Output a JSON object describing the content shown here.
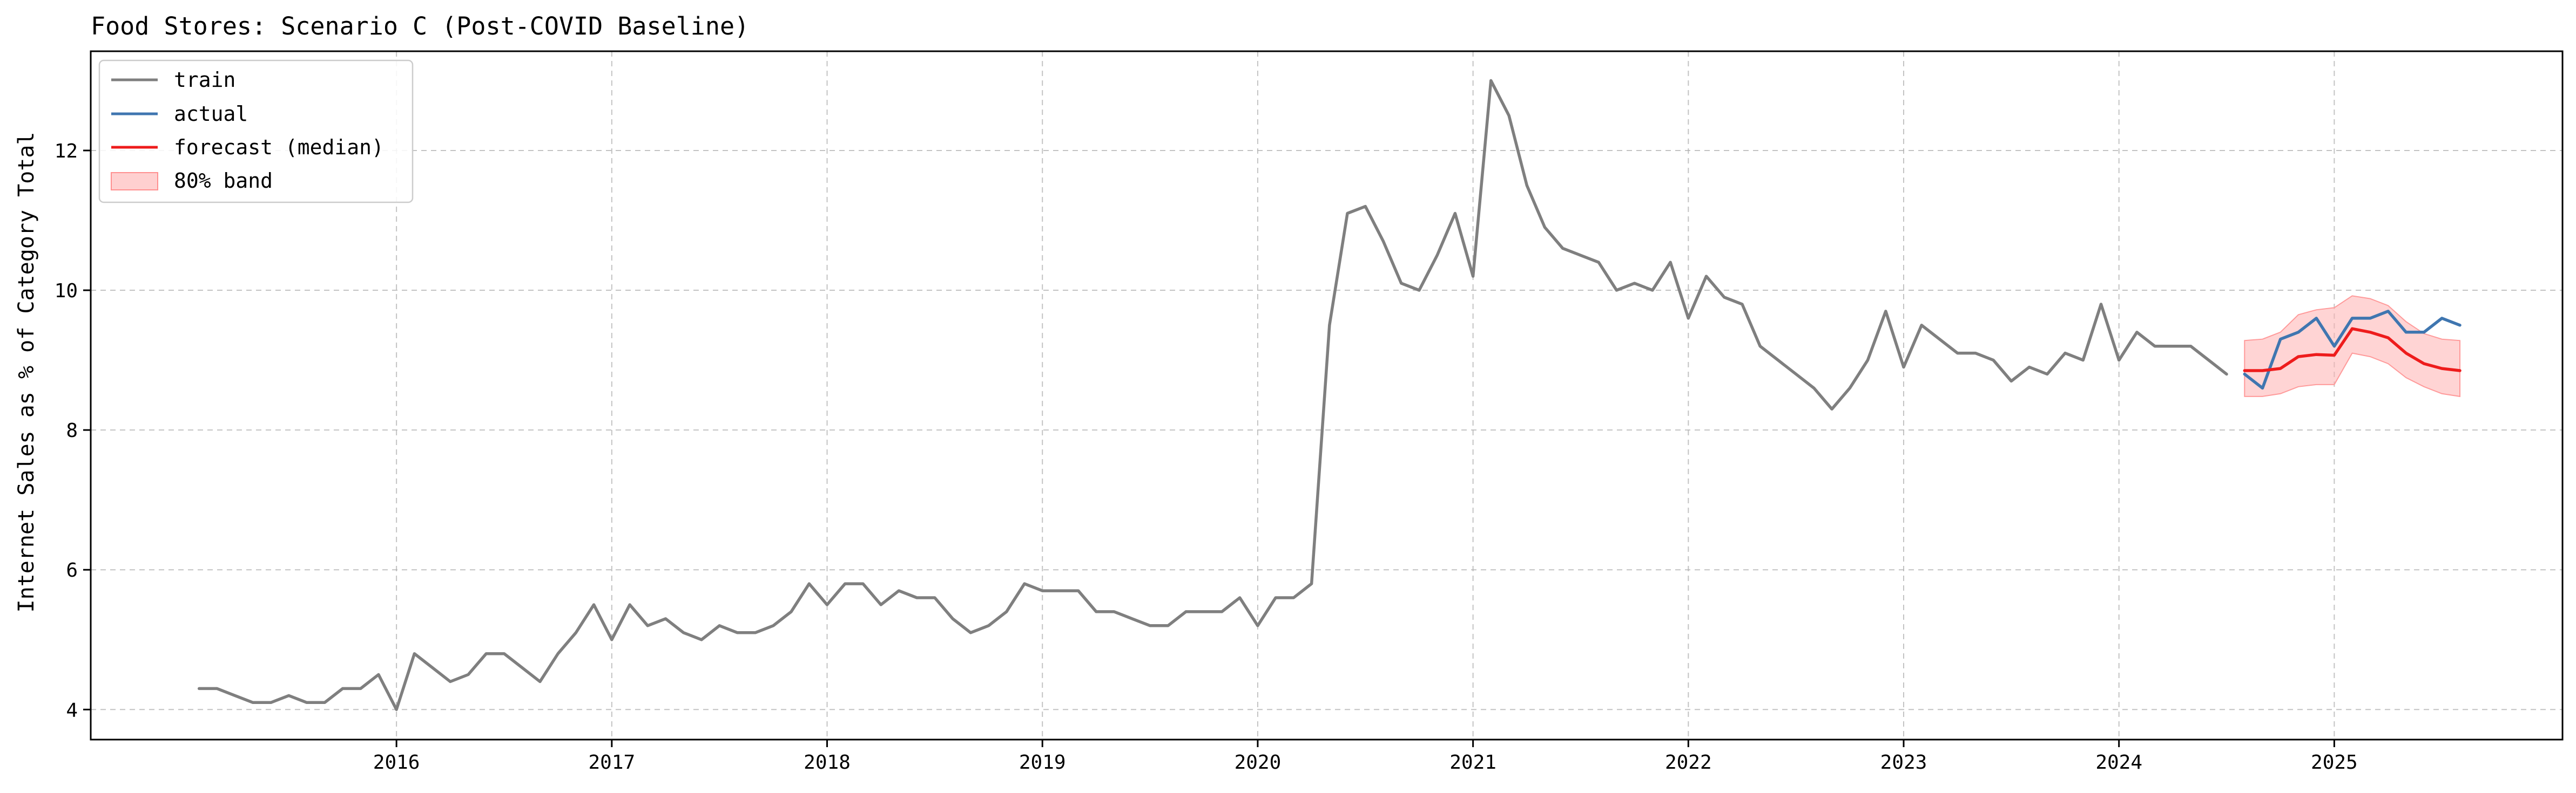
{
  "chart_data": {
    "type": "line",
    "title": "Food Stores: Scenario C (Post-COVID Baseline)",
    "xlabel": "",
    "ylabel": "Internet Sales as % of Category Total",
    "xlim": [
      2014.58,
      2026.06
    ],
    "ylim": [
      3.57,
      13.42
    ],
    "x_ticks": [
      2016,
      2017,
      2018,
      2019,
      2020,
      2021,
      2022,
      2023,
      2024,
      2025
    ],
    "y_ticks": [
      4,
      6,
      8,
      10,
      12
    ],
    "grid": true,
    "legend_position": "upper-left",
    "legend": [
      "train",
      "actual",
      "forecast (median)",
      "80% band"
    ],
    "series": [
      {
        "name": "train",
        "color": "#7f7f7f",
        "start": "2015-02",
        "step": "month",
        "values": [
          4.3,
          4.3,
          4.2,
          4.1,
          4.1,
          4.2,
          4.1,
          4.1,
          4.3,
          4.3,
          4.5,
          4.0,
          4.8,
          4.6,
          4.4,
          4.5,
          4.8,
          4.8,
          4.6,
          4.4,
          4.8,
          5.1,
          5.5,
          5.0,
          5.5,
          5.2,
          5.3,
          5.1,
          5.0,
          5.2,
          5.1,
          5.1,
          5.2,
          5.4,
          5.8,
          5.5,
          5.8,
          5.8,
          5.5,
          5.7,
          5.6,
          5.6,
          5.3,
          5.1,
          5.2,
          5.4,
          5.8,
          5.7,
          5.7,
          5.7,
          5.4,
          5.4,
          5.3,
          5.2,
          5.2,
          5.4,
          5.4,
          5.4,
          5.6,
          5.2,
          5.6,
          5.6,
          5.8,
          9.5,
          11.1,
          11.2,
          10.7,
          10.1,
          10.0,
          10.5,
          11.1,
          10.2,
          13.0,
          12.5,
          11.5,
          10.9,
          10.6,
          10.5,
          10.4,
          10.0,
          10.1,
          10.0,
          10.4,
          9.6,
          10.2,
          9.9,
          9.8,
          9.2,
          9.0,
          8.8,
          8.6,
          8.3,
          8.6,
          9.0,
          9.7,
          8.9,
          9.5,
          9.3,
          9.1,
          9.1,
          9.0,
          8.7,
          8.9,
          8.8,
          9.1,
          9.0,
          9.8,
          9.0,
          9.4,
          9.2,
          9.2,
          9.2,
          9.0,
          8.8
        ]
      },
      {
        "name": "actual",
        "color": "#3f76b0",
        "start": "2024-08",
        "step": "month",
        "values": [
          8.8,
          8.6,
          9.3,
          9.4,
          9.6,
          9.2,
          9.6,
          9.6,
          9.7,
          9.4,
          9.4,
          9.6,
          9.5
        ]
      },
      {
        "name": "forecast (median)",
        "color": "#ee1c1c",
        "start": "2024-08",
        "step": "month",
        "values": [
          8.85,
          8.85,
          8.88,
          9.05,
          9.08,
          9.07,
          9.45,
          9.4,
          9.32,
          9.1,
          8.95,
          8.88,
          8.85
        ]
      },
      {
        "name": "80% band",
        "color": "#ffb0b0",
        "start": "2024-08",
        "step": "month",
        "lower": [
          8.48,
          8.48,
          8.52,
          8.62,
          8.65,
          8.65,
          9.1,
          9.05,
          8.95,
          8.75,
          8.62,
          8.52,
          8.48
        ],
        "upper": [
          9.28,
          9.3,
          9.4,
          9.65,
          9.72,
          9.75,
          9.92,
          9.88,
          9.78,
          9.55,
          9.38,
          9.3,
          9.28
        ]
      }
    ]
  }
}
